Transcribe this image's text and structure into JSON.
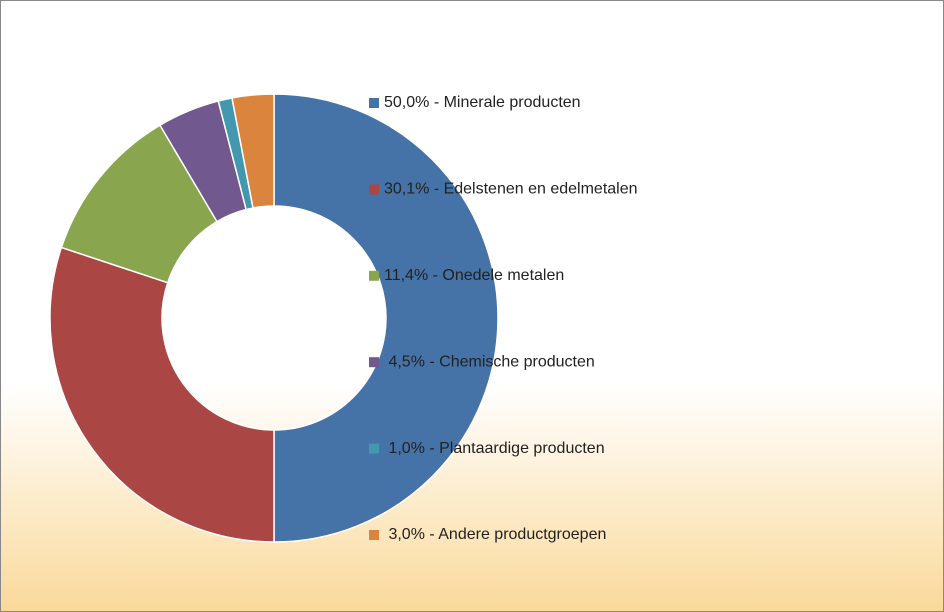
{
  "chart_data": {
    "type": "donut",
    "categories": [
      "50,0% - Minerale producten",
      "30,1% - Edelstenen en edelmetalen",
      "11,4% - Onedele metalen",
      " 4,5% - Chemische producten",
      " 1,0% - Plantaardige producten",
      " 3,0% - Andere productgroepen"
    ],
    "values": [
      50.0,
      30.1,
      11.4,
      4.5,
      1.0,
      3.0
    ],
    "colors": [
      "#4572a7",
      "#aa4643",
      "#89a54e",
      "#71588f",
      "#4198af",
      "#db843d"
    ],
    "legend": "right"
  }
}
